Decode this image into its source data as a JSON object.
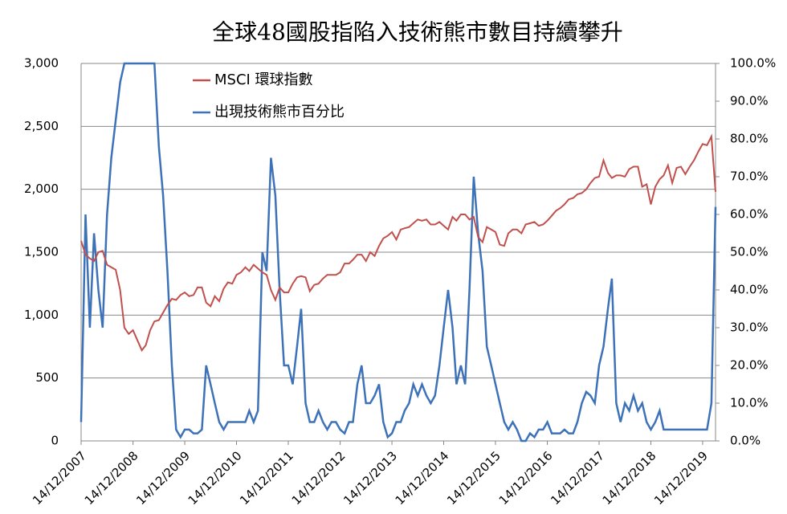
{
  "chart_data": {
    "type": "line",
    "title": "全球48國股指陷入技術熊市數目持續攀升",
    "x": [
      "14/12/2007",
      "14/01/2008",
      "14/02/2008",
      "14/03/2008",
      "14/04/2008",
      "14/05/2008",
      "14/06/2008",
      "14/07/2008",
      "14/08/2008",
      "14/09/2008",
      "14/10/2008",
      "14/11/2008",
      "14/12/2008",
      "14/01/2009",
      "14/02/2009",
      "14/03/2009",
      "14/04/2009",
      "14/05/2009",
      "14/06/2009",
      "14/07/2009",
      "14/08/2009",
      "14/09/2009",
      "14/10/2009",
      "14/11/2009",
      "14/12/2009",
      "14/01/2010",
      "14/02/2010",
      "14/03/2010",
      "14/04/2010",
      "14/05/2010",
      "14/06/2010",
      "14/07/2010",
      "14/08/2010",
      "14/09/2010",
      "14/10/2010",
      "14/11/2010",
      "14/12/2010",
      "14/01/2011",
      "14/02/2011",
      "14/03/2011",
      "14/04/2011",
      "14/05/2011",
      "14/06/2011",
      "14/07/2011",
      "14/08/2011",
      "14/09/2011",
      "14/10/2011",
      "14/11/2011",
      "14/12/2011",
      "14/01/2012",
      "14/02/2012",
      "14/03/2012",
      "14/04/2012",
      "14/05/2012",
      "14/06/2012",
      "14/07/2012",
      "14/08/2012",
      "14/09/2012",
      "14/10/2012",
      "14/11/2012",
      "14/12/2012",
      "14/01/2013",
      "14/02/2013",
      "14/03/2013",
      "14/04/2013",
      "14/05/2013",
      "14/06/2013",
      "14/07/2013",
      "14/08/2013",
      "14/09/2013",
      "14/10/2013",
      "14/11/2013",
      "14/12/2013",
      "14/01/2014",
      "14/02/2014",
      "14/03/2014",
      "14/04/2014",
      "14/05/2014",
      "14/06/2014",
      "14/07/2014",
      "14/08/2014",
      "14/09/2014",
      "14/10/2014",
      "14/11/2014",
      "14/12/2014",
      "14/01/2015",
      "14/02/2015",
      "14/03/2015",
      "14/04/2015",
      "14/05/2015",
      "14/06/2015",
      "14/07/2015",
      "14/08/2015",
      "14/09/2015",
      "14/10/2015",
      "14/11/2015",
      "14/12/2015",
      "14/01/2016",
      "14/02/2016",
      "14/03/2016",
      "14/04/2016",
      "14/05/2016",
      "14/06/2016",
      "14/07/2016",
      "14/08/2016",
      "14/09/2016",
      "14/10/2016",
      "14/11/2016",
      "14/12/2016",
      "14/01/2017",
      "14/02/2017",
      "14/03/2017",
      "14/04/2017",
      "14/05/2017",
      "14/06/2017",
      "14/07/2017",
      "14/08/2017",
      "14/09/2017",
      "14/10/2017",
      "14/11/2017",
      "14/12/2017",
      "14/01/2018",
      "14/02/2018",
      "14/03/2018",
      "14/04/2018",
      "14/05/2018",
      "14/06/2018",
      "14/07/2018",
      "14/08/2018",
      "14/09/2018",
      "14/10/2018",
      "14/11/2018",
      "14/12/2018",
      "14/01/2019",
      "14/02/2019",
      "14/03/2019",
      "14/04/2019",
      "14/05/2019",
      "14/06/2019",
      "14/07/2019",
      "14/08/2019",
      "14/09/2019",
      "14/10/2019",
      "14/11/2019",
      "14/12/2019",
      "14/01/2020",
      "14/02/2020",
      "14/03/2020"
    ],
    "series": [
      {
        "name": "MSCI 環球指數",
        "color": "#c0504d",
        "values": [
          1590,
          1480,
          1450,
          1430,
          1500,
          1510,
          1400,
          1380,
          1360,
          1200,
          900,
          850,
          880,
          800,
          720,
          760,
          880,
          950,
          960,
          1020,
          1080,
          1130,
          1120,
          1160,
          1180,
          1150,
          1160,
          1220,
          1220,
          1100,
          1070,
          1150,
          1110,
          1210,
          1260,
          1250,
          1320,
          1340,
          1380,
          1350,
          1400,
          1370,
          1340,
          1320,
          1200,
          1120,
          1220,
          1180,
          1180,
          1250,
          1300,
          1310,
          1300,
          1190,
          1240,
          1250,
          1290,
          1320,
          1320,
          1320,
          1340,
          1410,
          1410,
          1440,
          1480,
          1480,
          1430,
          1500,
          1470,
          1550,
          1610,
          1630,
          1660,
          1600,
          1680,
          1690,
          1700,
          1730,
          1760,
          1750,
          1760,
          1720,
          1720,
          1740,
          1710,
          1680,
          1780,
          1750,
          1800,
          1800,
          1760,
          1780,
          1620,
          1580,
          1700,
          1680,
          1660,
          1560,
          1550,
          1650,
          1680,
          1680,
          1650,
          1720,
          1730,
          1740,
          1710,
          1720,
          1750,
          1790,
          1830,
          1850,
          1880,
          1920,
          1930,
          1960,
          1970,
          2000,
          2050,
          2090,
          2100,
          2230,
          2130,
          2090,
          2110,
          2110,
          2100,
          2160,
          2180,
          2180,
          2020,
          2040,
          1880,
          2020,
          2080,
          2110,
          2190,
          2050,
          2170,
          2180,
          2120,
          2180,
          2230,
          2300,
          2360,
          2350,
          2420,
          1980
        ]
      },
      {
        "name": "出現技術熊市百分比",
        "color": "#3d72b8",
        "axis": "y2",
        "values": [
          5,
          60,
          30,
          55,
          40,
          30,
          60,
          75,
          85,
          95,
          100,
          100,
          100,
          100,
          100,
          100,
          100,
          100,
          78,
          65,
          45,
          20,
          3,
          1,
          3,
          3,
          2,
          2,
          3,
          20,
          15,
          10,
          5,
          3,
          5,
          5,
          5,
          5,
          5,
          8,
          5,
          8,
          50,
          45,
          75,
          65,
          40,
          20,
          20,
          15,
          25,
          35,
          10,
          5,
          5,
          8,
          5,
          3,
          5,
          5,
          3,
          2,
          5,
          5,
          15,
          20,
          10,
          10,
          12,
          15,
          5,
          1,
          2,
          5,
          5,
          8,
          10,
          15,
          12,
          15,
          12,
          10,
          12,
          20,
          30,
          40,
          30,
          15,
          20,
          15,
          40,
          70,
          55,
          45,
          25,
          20,
          15,
          10,
          5,
          3,
          5,
          3,
          0,
          0,
          2,
          1,
          3,
          3,
          5,
          2,
          2,
          2,
          3,
          2,
          2,
          5,
          10,
          13,
          12,
          10,
          20,
          25,
          35,
          43,
          10,
          5,
          10,
          8,
          12,
          8,
          10,
          5,
          3,
          5,
          8,
          3,
          3,
          3,
          3,
          3,
          3,
          3,
          3,
          3,
          3,
          3,
          10,
          62
        ]
      }
    ],
    "xlim": [
      "14/12/2007",
      "14/03/2020"
    ],
    "xticks": [
      "14/12/2007",
      "14/12/2008",
      "14/12/2009",
      "14/12/2010",
      "14/12/2011",
      "14/12/2012",
      "14/12/2013",
      "14/12/2014",
      "14/12/2015",
      "14/12/2016",
      "14/12/2017",
      "14/12/2018",
      "14/12/2019"
    ],
    "ylim": [
      0,
      3000
    ],
    "yticks": [
      0,
      500,
      {
        "value": 1000,
        "label": "1,000"
      },
      {
        "value": 1500,
        "label": "1,500"
      },
      {
        "value": 2000,
        "label": "2,000"
      },
      {
        "value": 2500,
        "label": "2,500"
      },
      {
        "value": 3000,
        "label": "3,000"
      }
    ],
    "y2lim": [
      0,
      100
    ],
    "y2ticks": [
      {
        "value": 0,
        "label": "0.0%"
      },
      {
        "value": 10,
        "label": "10.0%"
      },
      {
        "value": 20,
        "label": "20.0%"
      },
      {
        "value": 30,
        "label": "30.0%"
      },
      {
        "value": 40,
        "label": "40.0%"
      },
      {
        "value": 50,
        "label": "50.0%"
      },
      {
        "value": 60,
        "label": "60.0%"
      },
      {
        "value": 70,
        "label": "70.0%"
      },
      {
        "value": 80,
        "label": "80.0%"
      },
      {
        "value": 90,
        "label": "90.0%"
      },
      {
        "value": 100,
        "label": "100.0%"
      }
    ],
    "grid": true
  }
}
